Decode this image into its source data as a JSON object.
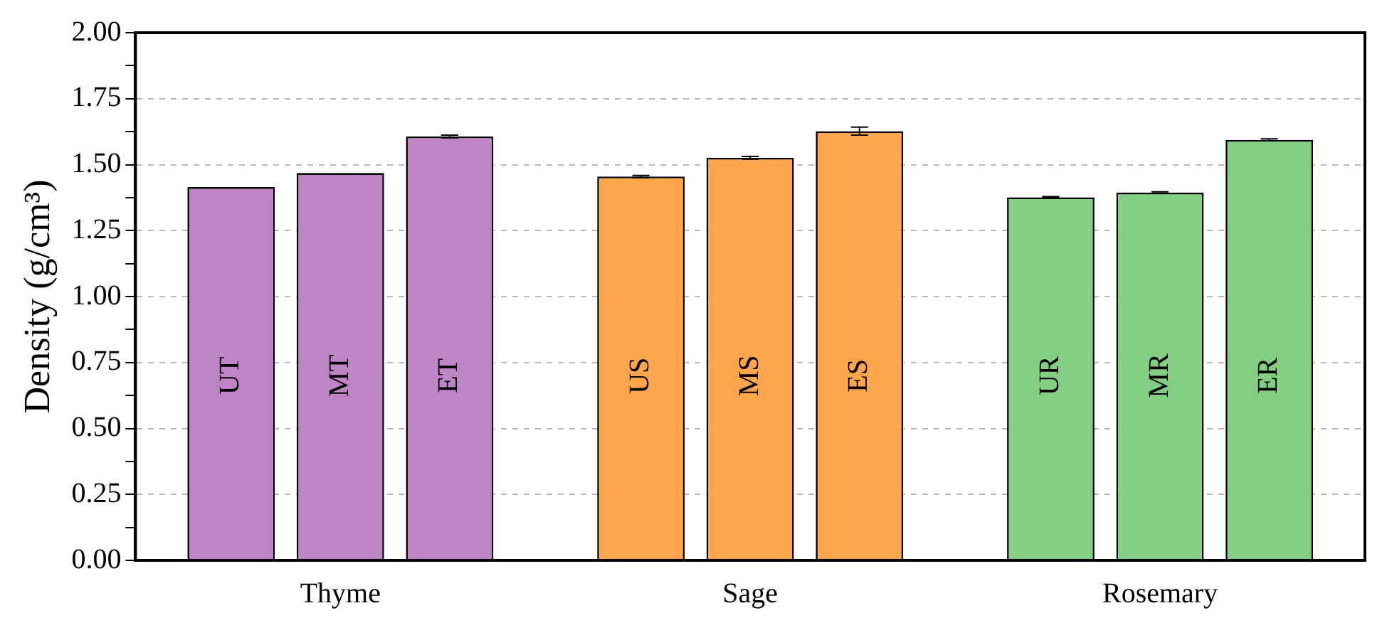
{
  "chart_data": {
    "type": "bar",
    "ylabel": "Density (g/cm³)",
    "categories": [
      "Thyme",
      "Sage",
      "Rosemary"
    ],
    "series": [
      {
        "colors": [
          "#bf84c5",
          "#ffa64d",
          "#84ce84"
        ],
        "values": [
          1.415,
          1.455,
          1.376
        ],
        "errors": [
          null,
          0.004,
          0.003
        ],
        "value_labels": [
          "UT",
          "US",
          "UR"
        ]
      },
      {
        "colors": [
          "#bf84c5",
          "#ffa64d",
          "#84ce84"
        ],
        "values": [
          1.468,
          1.526,
          1.394
        ],
        "errors": [
          null,
          0.005,
          0.003
        ],
        "value_labels": [
          "MT",
          "MS",
          "MR"
        ]
      },
      {
        "colors": [
          "#bf84c5",
          "#ffa64d",
          "#84ce84"
        ],
        "values": [
          1.607,
          1.627,
          1.594
        ],
        "errors": [
          0.005,
          0.015,
          0.004
        ],
        "value_labels": [
          "ET",
          "ES",
          "ER"
        ]
      }
    ],
    "ylim": [
      0,
      2
    ],
    "yticks": [
      {
        "value": 0,
        "label": "0.00"
      },
      {
        "value": 0.25,
        "label": "0.25"
      },
      {
        "value": 0.5,
        "label": "0.50"
      },
      {
        "value": 0.75,
        "label": "0.75"
      },
      {
        "value": 1,
        "label": "1.00"
      },
      {
        "value": 1.25,
        "label": "1.25"
      },
      {
        "value": 1.5,
        "label": "1.50"
      },
      {
        "value": 1.75,
        "label": "1.75"
      },
      {
        "value": 2,
        "label": "2.00"
      }
    ],
    "grid": "y",
    "legend": false
  }
}
